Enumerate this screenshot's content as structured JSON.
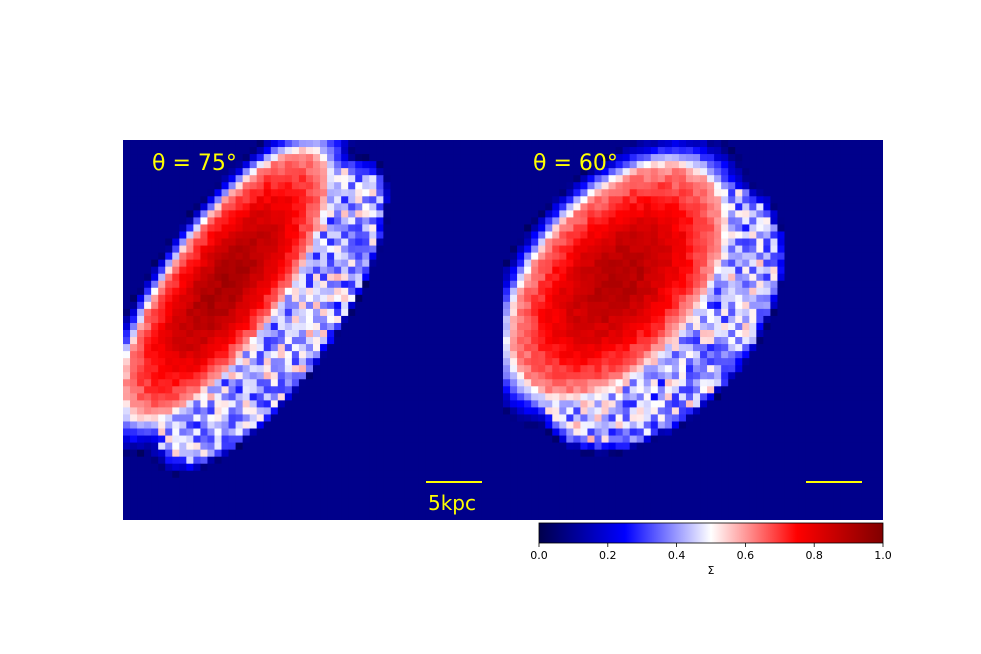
{
  "chart_data": [
    {
      "type": "heatmap",
      "panel_label": "θ = 75°",
      "scale_bar_label": "5kpc",
      "colorscale_range": [
        0,
        1
      ],
      "blob": {
        "center": [
          -0.46,
          0.24
        ],
        "axes": [
          0.95,
          0.33
        ],
        "angle_deg": 55,
        "core_peak": 0.92,
        "wing_side": "upper-right"
      }
    },
    {
      "type": "heatmap",
      "panel_label": "θ = 60°",
      "scale_bar_label": "",
      "colorscale_range": [
        0,
        1
      ],
      "blob": {
        "center": [
          -0.4,
          0.26
        ],
        "axes": [
          0.82,
          0.48
        ],
        "angle_deg": 50,
        "core_peak": 0.9,
        "wing_side": "upper-right"
      }
    }
  ],
  "colorbar": {
    "label": "Σ",
    "ticks": [
      "0.0",
      "0.2",
      "0.4",
      "0.6",
      "0.8",
      "1.0"
    ],
    "range": [
      0,
      1
    ],
    "colormap": "seismic",
    "stops": [
      "#00004c",
      "#0000ff",
      "#ffffff",
      "#ff0000",
      "#800000"
    ]
  },
  "colors": {
    "background": "#00008b",
    "annotation": "#ffff00"
  }
}
